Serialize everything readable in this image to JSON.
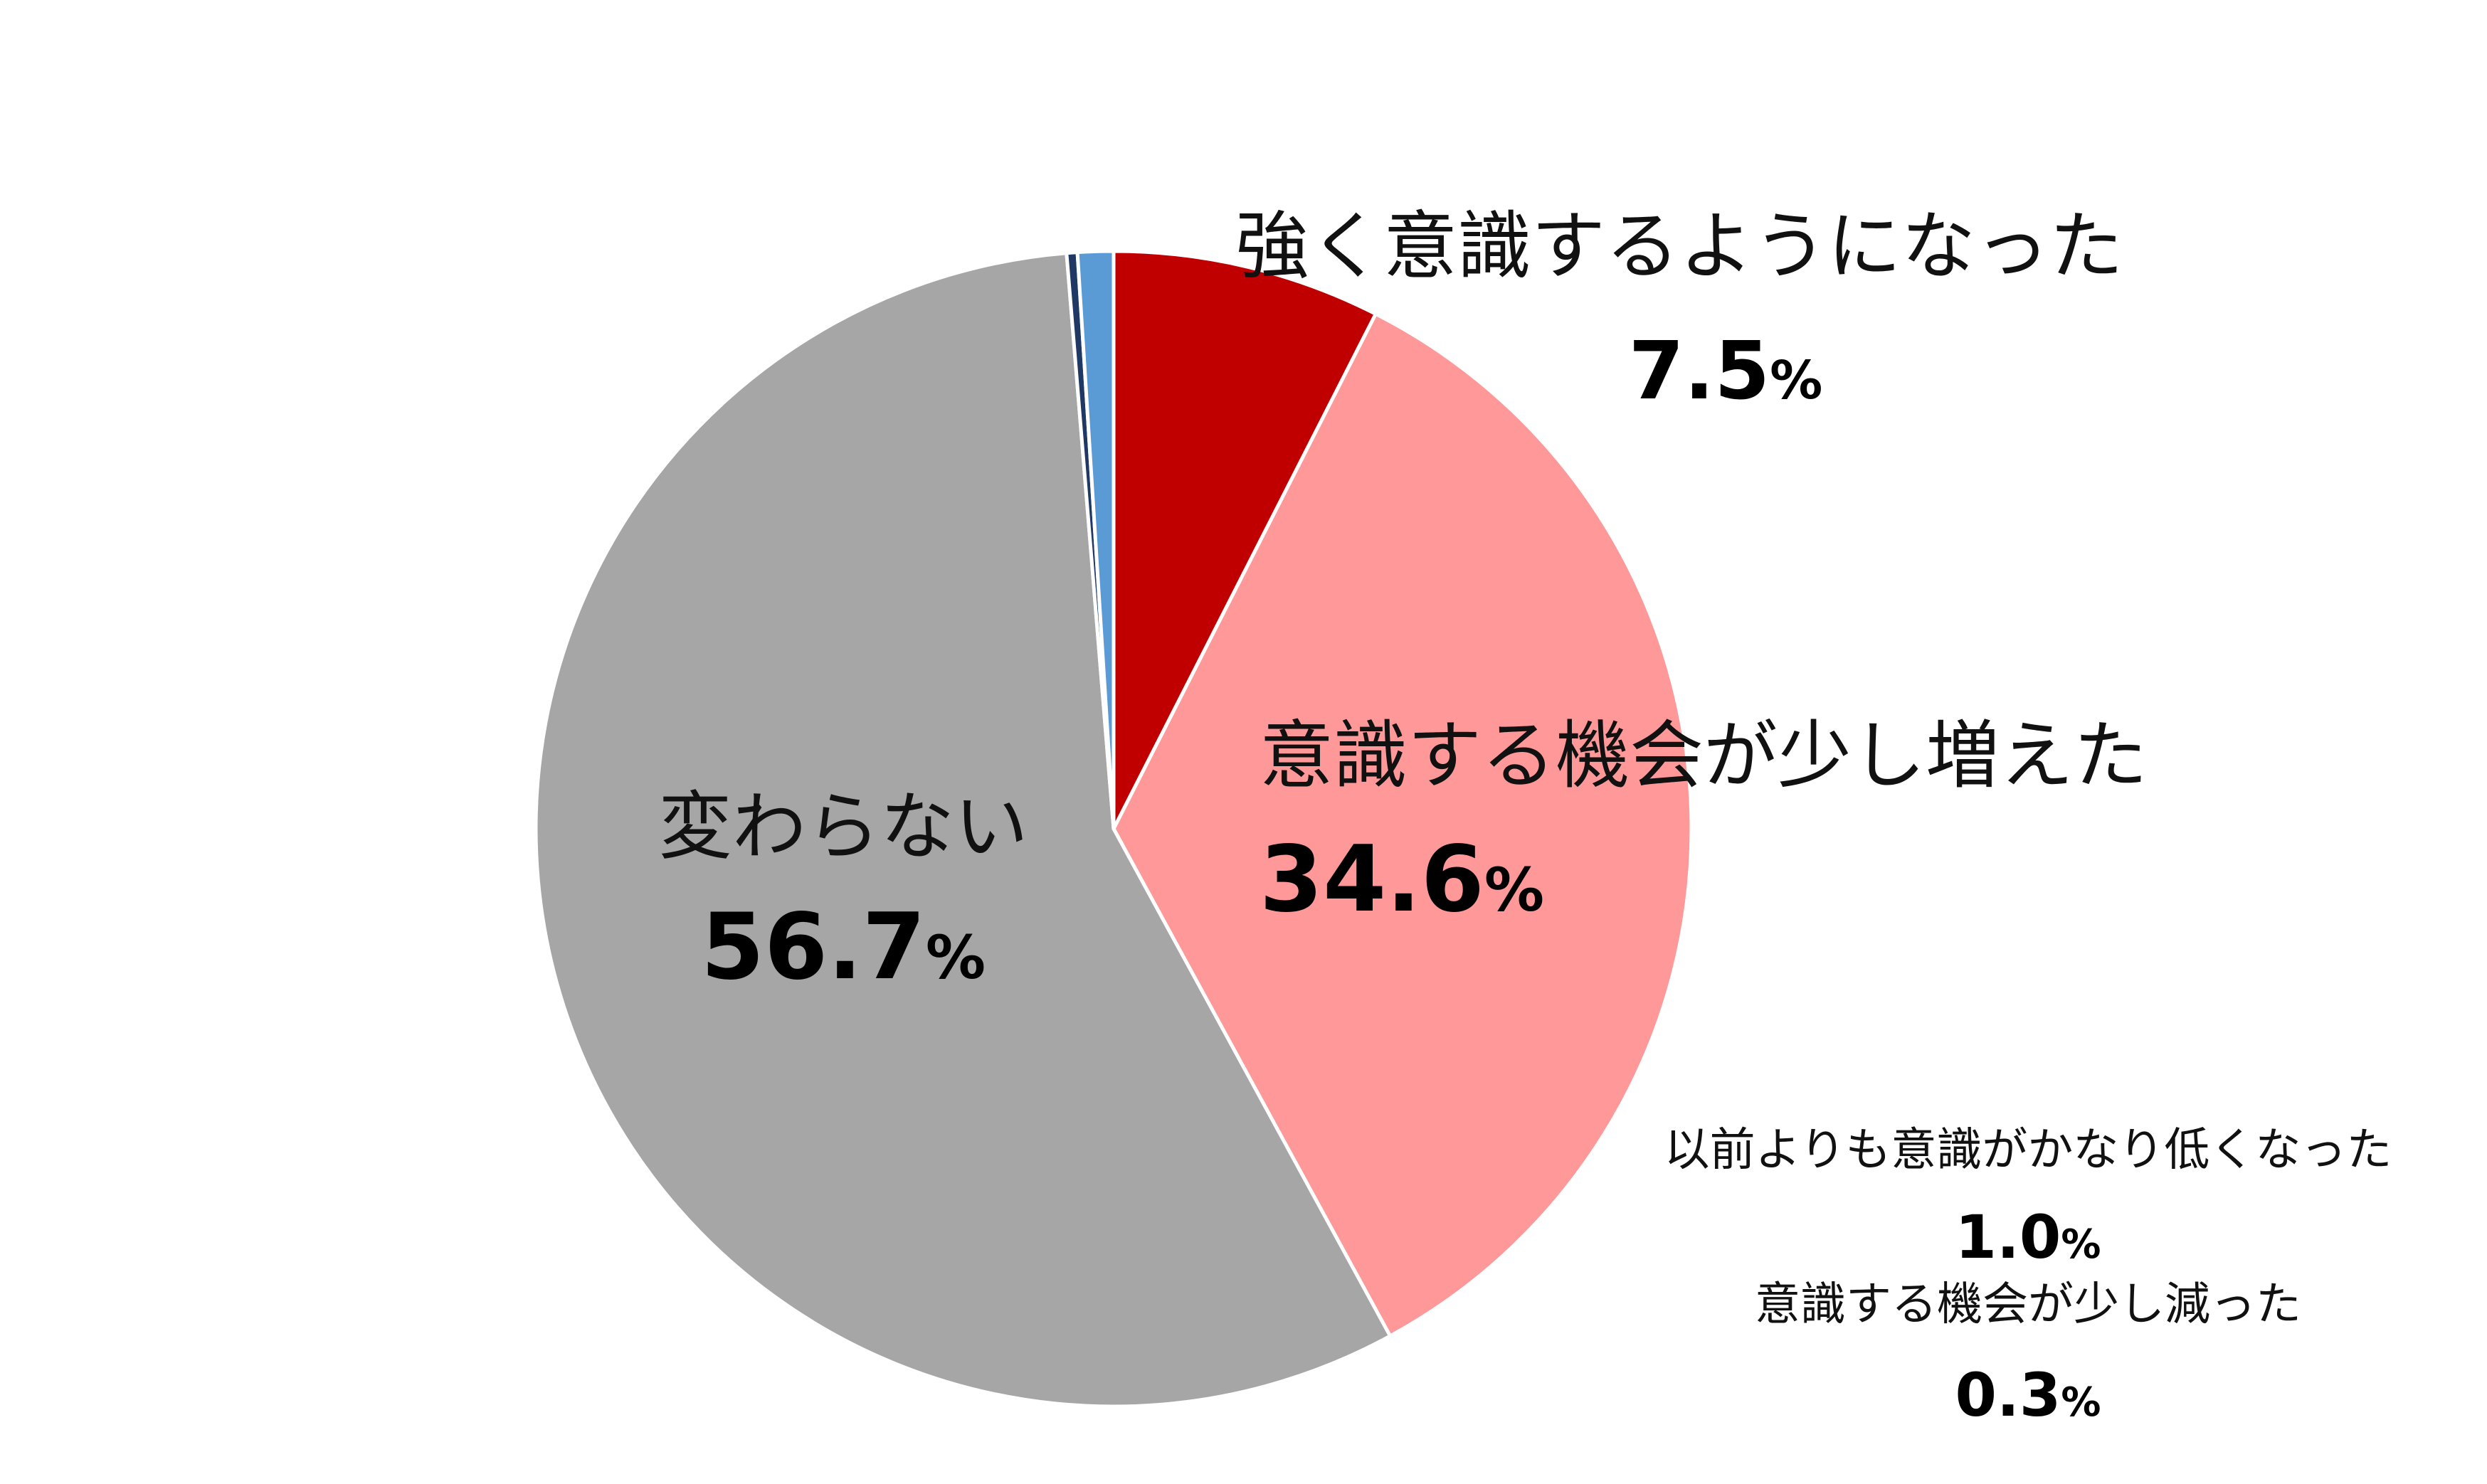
{
  "chart_data": {
    "type": "pie",
    "start_angle_deg": 0,
    "direction": "clockwise",
    "slices": [
      {
        "label": "強く意識するようになった",
        "value": 7.5,
        "value_text": "7.5",
        "unit": "%",
        "color": "#C00000"
      },
      {
        "label": "意識する機会が少し増えた",
        "value": 34.6,
        "value_text": "34.6",
        "unit": "%",
        "color": "#FF9999"
      },
      {
        "label": "変わらない",
        "value": 56.7,
        "value_text": "56.7",
        "unit": "%",
        "color": "#A6A6A6"
      },
      {
        "label": "意識する機会が少し減った",
        "value": 0.3,
        "value_text": "0.3",
        "unit": "%",
        "color": "#1F3864"
      },
      {
        "label": "以前よりも意識がかなり低くなった",
        "value": 1.0,
        "value_text": "1.0",
        "unit": "%",
        "color": "#5B9BD5"
      }
    ]
  }
}
